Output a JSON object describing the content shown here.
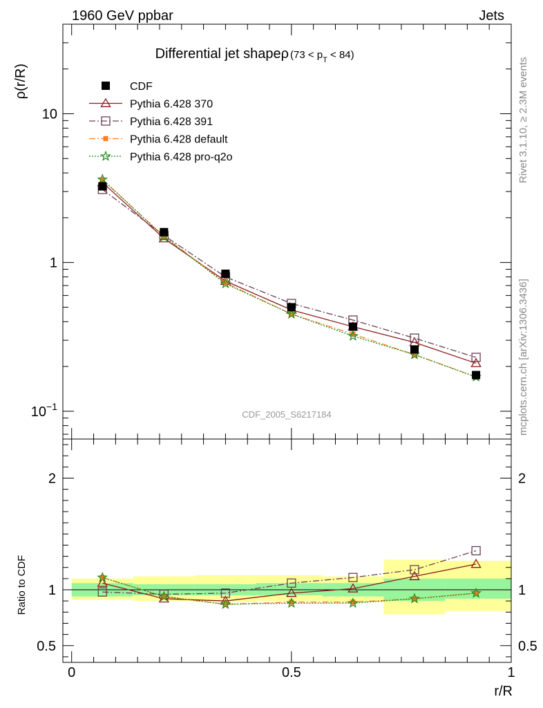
{
  "header": {
    "energy_label": "1960 GeV ppbar",
    "process_label": "Jets"
  },
  "side_labels": {
    "rivet": "Rivet 3.1.10, ≥ 2.3M events",
    "mcplots": "mcplots.cern.ch [arXiv:1306.3436]"
  },
  "chart_data": [
    {
      "type": "line",
      "title": "Differential jet shapeρ",
      "title_cut": "(73 < p_T < 84)",
      "watermark": "CDF_2005_S6217184",
      "xlabel": "r/R",
      "ylabel": "ρ(r/R)",
      "yscale": "log",
      "xlim": [
        -0.02,
        1.0
      ],
      "ylim": [
        0.065,
        40
      ],
      "y_ticks": [
        "10^-1",
        "1",
        "10"
      ],
      "x": [
        0.07,
        0.21,
        0.35,
        0.5,
        0.64,
        0.78,
        0.92
      ],
      "legend_position": "top-left",
      "series": [
        {
          "name": "CDF",
          "color": "#000000",
          "marker": "square-filled",
          "line": "none",
          "values": [
            3.25,
            1.6,
            0.84,
            0.5,
            0.37,
            0.26,
            0.175
          ],
          "err_lo": [
            0.1,
            0.05,
            0.02,
            0.01,
            0.01,
            0.02,
            0.01
          ]
        },
        {
          "name": "Pythia 6.428 370",
          "color": "#8b1a1a",
          "marker": "triangle-open",
          "line": "solid",
          "values": [
            3.45,
            1.45,
            0.75,
            0.48,
            0.37,
            0.29,
            0.21
          ]
        },
        {
          "name": "Pythia 6.428 391",
          "color": "#6a3d52",
          "marker": "square-open",
          "line": "dashdot",
          "values": [
            3.1,
            1.52,
            0.8,
            0.53,
            0.41,
            0.31,
            0.23
          ]
        },
        {
          "name": "Pythia 6.428 default",
          "color": "#ff7f24",
          "marker": "square-small-filled",
          "line": "dashdot",
          "values": [
            3.6,
            1.5,
            0.73,
            0.45,
            0.33,
            0.24,
            0.17
          ]
        },
        {
          "name": "Pythia 6.428 pro-q2o",
          "color": "#1a8a1a",
          "marker": "star",
          "line": "dotted",
          "values": [
            3.62,
            1.49,
            0.72,
            0.45,
            0.32,
            0.24,
            0.17
          ]
        }
      ]
    },
    {
      "type": "line",
      "xlabel": "r/R",
      "ylabel": "Ratio to CDF",
      "xlim": [
        -0.02,
        1.0
      ],
      "ylim": [
        0.35,
        2.35
      ],
      "y_tick_labels": [
        "0.5",
        "1",
        "2"
      ],
      "x_tick_labels": [
        "0",
        "0.5",
        "1"
      ],
      "bins": [
        [
          0.0,
          0.14
        ],
        [
          0.14,
          0.28
        ],
        [
          0.28,
          0.42
        ],
        [
          0.42,
          0.57
        ],
        [
          0.57,
          0.71
        ],
        [
          0.71,
          0.85
        ],
        [
          0.85,
          1.0
        ]
      ],
      "band_inner": [
        [
          0.94,
          1.06
        ],
        [
          0.95,
          1.05
        ],
        [
          0.95,
          1.05
        ],
        [
          0.95,
          1.06
        ],
        [
          0.94,
          1.06
        ],
        [
          0.9,
          1.1
        ],
        [
          0.92,
          1.1
        ]
      ],
      "band_outer": [
        [
          0.91,
          1.1
        ],
        [
          0.9,
          1.12
        ],
        [
          0.89,
          1.13
        ],
        [
          0.9,
          1.13
        ],
        [
          0.89,
          1.12
        ],
        [
          0.78,
          1.27
        ],
        [
          0.81,
          1.26
        ]
      ],
      "x": [
        0.07,
        0.21,
        0.35,
        0.5,
        0.64,
        0.78,
        0.92
      ],
      "series": [
        {
          "name": "Pythia 6.428 370",
          "color": "#8b1a1a",
          "marker": "triangle-open",
          "line": "solid",
          "values": [
            1.06,
            0.92,
            0.9,
            0.97,
            1.01,
            1.12,
            1.23
          ]
        },
        {
          "name": "Pythia 6.428 391",
          "color": "#6a3d52",
          "marker": "square-open",
          "line": "dashdot",
          "values": [
            0.98,
            0.96,
            0.97,
            1.06,
            1.11,
            1.18,
            1.35
          ]
        },
        {
          "name": "Pythia 6.428 default",
          "color": "#ff7f24",
          "marker": "square-small-filled",
          "line": "dashdot",
          "values": [
            1.11,
            0.94,
            0.87,
            0.89,
            0.89,
            0.92,
            0.97
          ]
        },
        {
          "name": "Pythia 6.428 pro-q2o",
          "color": "#1a8a1a",
          "marker": "star",
          "line": "dotted",
          "values": [
            1.11,
            0.94,
            0.87,
            0.88,
            0.88,
            0.92,
            0.97
          ]
        }
      ]
    }
  ]
}
